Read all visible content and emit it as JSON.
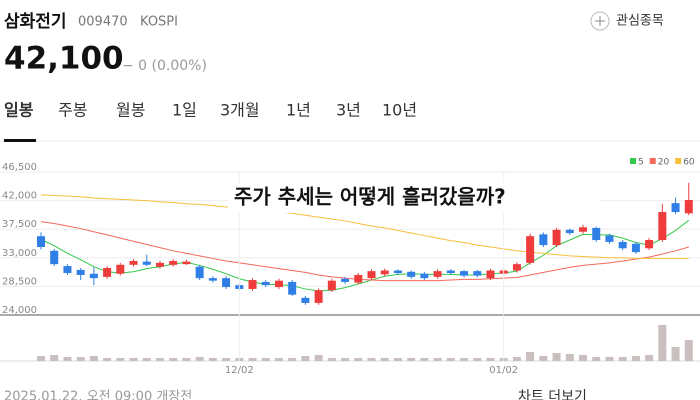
{
  "header": {
    "name": "삼화전기",
    "code": "009470",
    "market": "KOSPI",
    "watch": "관심종목",
    "price": "42,100",
    "change": "− 0 (0.00%)"
  },
  "tabs": [
    "일봉",
    "주봉",
    "월봉",
    "1일",
    "3개월",
    "1년",
    "3년",
    "10년"
  ],
  "chart": {
    "type": "candlestick",
    "annotation": "주가 추세는 어떻게 흘러갔을까?",
    "ylim": [
      24000,
      46500
    ],
    "yticks": [
      {
        "value": 46500,
        "label": "46,500"
      },
      {
        "value": 42000,
        "label": "42,000"
      },
      {
        "value": 37500,
        "label": "37,500"
      },
      {
        "value": 33000,
        "label": "33,000"
      },
      {
        "value": 28500,
        "label": "28,500"
      },
      {
        "value": 24000,
        "label": "24,000"
      }
    ],
    "categories": [
      null,
      null,
      null,
      null,
      null,
      null,
      null,
      null,
      null,
      null,
      null,
      null,
      null,
      null,
      null,
      "12/02",
      null,
      null,
      null,
      null,
      null,
      null,
      null,
      null,
      null,
      null,
      null,
      null,
      null,
      null,
      null,
      null,
      null,
      null,
      null,
      "01/02",
      null,
      null,
      null,
      null,
      null,
      null,
      null,
      null,
      null,
      null,
      null,
      null,
      null,
      null
    ],
    "up_color": "#ee3b3b",
    "down_color": "#2f7fe6",
    "open": [
      36400,
      34100,
      31700,
      31100,
      30500,
      30000,
      30500,
      31900,
      32400,
      31600,
      31900,
      32000,
      31600,
      29800,
      29800,
      28700,
      28100,
      29200,
      28400,
      29200,
      26700,
      25900,
      27900,
      29700,
      29100,
      29800,
      30400,
      31000,
      30800,
      30500,
      30000,
      31000,
      30900,
      30900,
      29800,
      30500,
      31000,
      32200,
      36700,
      35000,
      37400,
      37100,
      37700,
      36500,
      35500,
      35200,
      34500,
      35800,
      41600,
      40000
    ],
    "close": [
      34700,
      32000,
      30600,
      30300,
      29800,
      31400,
      31900,
      32500,
      31900,
      32200,
      32500,
      32400,
      29800,
      29400,
      28400,
      28100,
      29500,
      28700,
      29400,
      27200,
      25900,
      27900,
      29400,
      29200,
      30300,
      30900,
      31000,
      30600,
      30000,
      29800,
      30900,
      30600,
      30200,
      30200,
      31000,
      31000,
      32000,
      36400,
      35000,
      37400,
      36900,
      37800,
      35800,
      35500,
      34500,
      33900,
      35800,
      40200,
      40200,
      42100
    ],
    "high": [
      37000,
      34400,
      32000,
      31400,
      31500,
      31700,
      32200,
      32800,
      33500,
      32500,
      32800,
      32700,
      31900,
      30100,
      30100,
      29000,
      29800,
      29500,
      29700,
      29500,
      27000,
      28200,
      29700,
      30000,
      30600,
      31200,
      31300,
      31200,
      31000,
      30800,
      31200,
      31200,
      31100,
      31100,
      31300,
      31300,
      32300,
      36800,
      37000,
      37700,
      37600,
      38200,
      37900,
      36800,
      35800,
      35500,
      36100,
      41500,
      42500,
      44800
    ],
    "low": [
      34300,
      31700,
      30300,
      29500,
      28700,
      29700,
      30200,
      31600,
      31700,
      31300,
      31600,
      31900,
      29500,
      29100,
      28100,
      27800,
      27800,
      28400,
      28100,
      27000,
      25600,
      25600,
      27600,
      28900,
      28800,
      29500,
      30100,
      30300,
      29700,
      29500,
      29700,
      30300,
      29900,
      29900,
      29500,
      30200,
      30700,
      31900,
      34700,
      34700,
      36600,
      36800,
      35500,
      35200,
      34200,
      33600,
      34200,
      35500,
      39900,
      39700
    ],
    "ma": [
      {
        "name": "5",
        "color": "#33c94a",
        "values": [
          35900,
          34900,
          33700,
          32700,
          31600,
          30800,
          30600,
          30800,
          31300,
          31600,
          32000,
          32300,
          31800,
          31200,
          30500,
          29700,
          29200,
          28800,
          28800,
          28600,
          28100,
          27800,
          27900,
          28300,
          28900,
          29500,
          30100,
          30400,
          30500,
          30400,
          30400,
          30400,
          30300,
          30300,
          30500,
          30600,
          30900,
          32200,
          33400,
          34900,
          35800,
          36700,
          36600,
          36600,
          36100,
          35400,
          35000,
          36000,
          37300,
          38900
        ]
      },
      {
        "name": "20",
        "color": "#f4695a",
        "values": [
          38700,
          38400,
          38000,
          37600,
          37100,
          36600,
          36100,
          35600,
          35100,
          34600,
          34100,
          33700,
          33300,
          32900,
          32500,
          32200,
          31900,
          31600,
          31300,
          31000,
          30700,
          30300,
          30000,
          29800,
          29600,
          29500,
          29400,
          29400,
          29400,
          29400,
          29400,
          29500,
          29600,
          29600,
          29700,
          29800,
          29900,
          30300,
          30700,
          31100,
          31500,
          31800,
          32000,
          32200,
          32500,
          32800,
          33100,
          33600,
          34100,
          34700
        ]
      },
      {
        "name": "60",
        "color": "#f7be3c",
        "values": [
          42900,
          42800,
          42700,
          42600,
          42400,
          42300,
          42200,
          42100,
          42000,
          41800,
          41700,
          41500,
          41400,
          41200,
          41000,
          40800,
          40600,
          40400,
          40200,
          40000,
          39700,
          39400,
          39100,
          38800,
          38400,
          38000,
          37700,
          37300,
          36900,
          36500,
          36100,
          35700,
          35400,
          35000,
          34700,
          34400,
          34100,
          33900,
          33700,
          33500,
          33300,
          33200,
          33100,
          33000,
          33000,
          32900,
          32900,
          32900,
          32900,
          32900
        ]
      }
    ],
    "volume_color": "#c9bfbf",
    "volume": [
      5,
      6,
      4,
      4,
      5,
      3,
      3,
      3,
      3,
      3,
      3,
      3,
      4,
      3,
      3,
      3,
      3,
      3,
      3,
      3,
      5,
      6,
      3,
      3,
      3,
      3,
      3,
      3,
      3,
      3,
      3,
      3,
      3,
      3,
      3,
      3,
      4,
      9,
      5,
      8,
      7,
      6,
      4,
      4,
      4,
      5,
      6,
      36,
      14,
      21
    ]
  },
  "footer": {
    "time": "2025.01.22. 오전 09:00 개장전",
    "more": "차트 더보기"
  }
}
